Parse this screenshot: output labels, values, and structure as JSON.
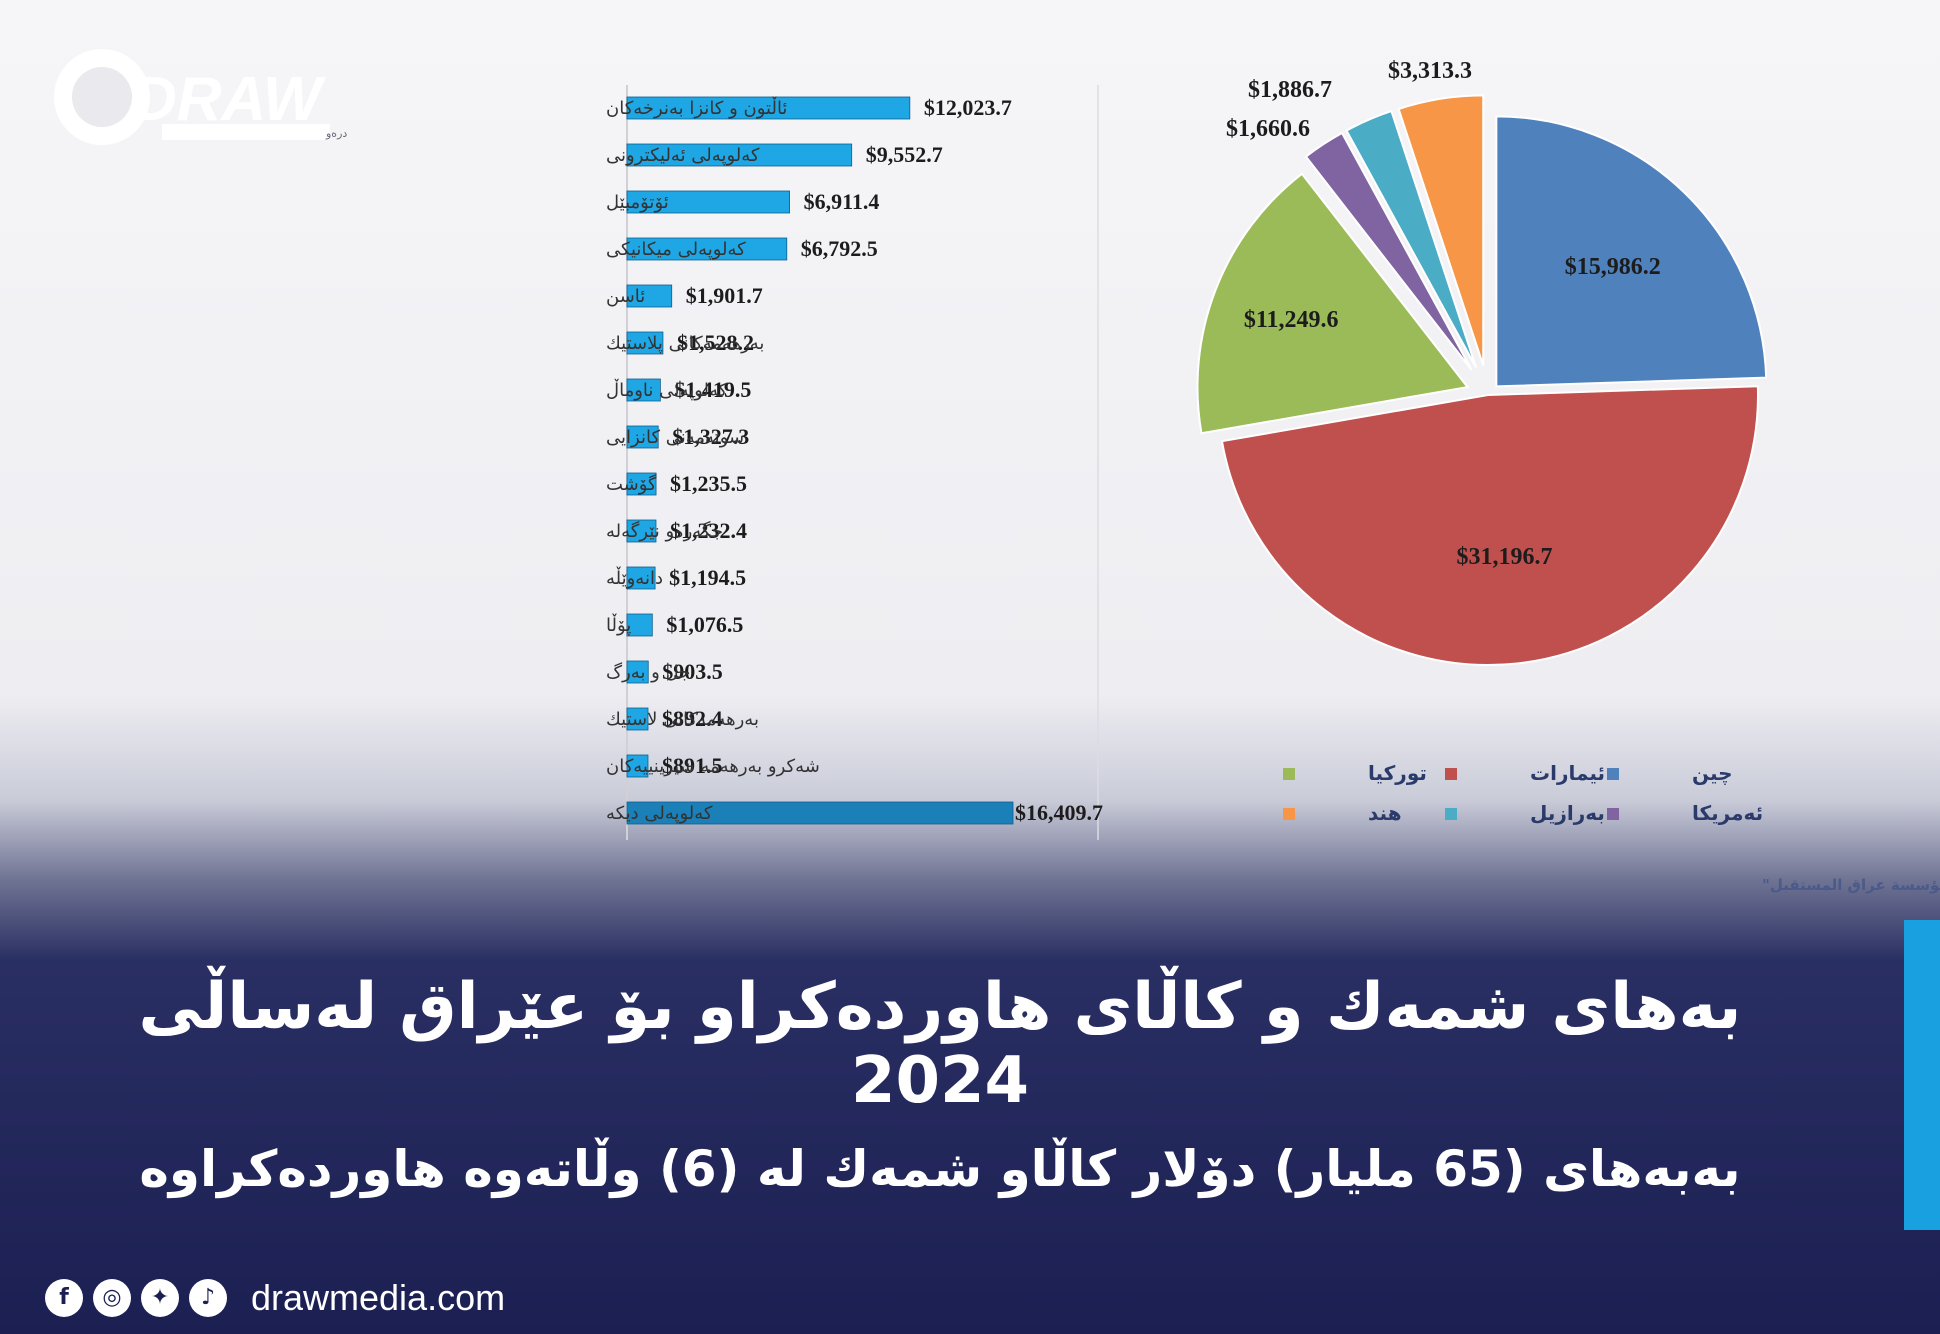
{
  "brand": {
    "logo_text": "DRAW",
    "tagline": "دامەزراوەی میدیایی درەو",
    "website": "drawmedia.com",
    "accent_color": "#18a0e0"
  },
  "headline": "بەهای شمەك و كاڵای هاوردەكراو بۆ عێراق لەساڵی 2024",
  "subheadline": "بەبەهای (65 ملیار) دۆلار كاڵاو شمەك لە (6) وڵاتەوە هاوردەكراوە",
  "social_icons": [
    "facebook-icon",
    "instagram-icon",
    "twitter-icon",
    "tiktok-icon"
  ],
  "chart_data": [
    {
      "type": "bar",
      "orientation": "horizontal",
      "categories": [
        "ئاڵتون و كانزا بەنرخەكان",
        "كەلوپەلی ئەلیكترونی",
        "ئۆتۆمبێل",
        "كەلوپەلی میكانیكی",
        "ئاسن",
        "بەرهەمەكانی پلاستیك",
        "كەلوپەلی ناوماڵ",
        "سوتەمەنی كانزایی",
        "گۆشت",
        "جگەرەو نێرگەلە",
        "دانەوێڵە",
        "پۆڵا",
        "جل و بەرگ",
        "بەرهەمەكانی لاستیك",
        "شەكرو بەرهەمە شیرینییەكان",
        "كەلوپەلی دیكە"
      ],
      "values": [
        12023.7,
        9552.7,
        6911.4,
        6792.5,
        1901.7,
        1528.2,
        1419.5,
        1327.3,
        1235.5,
        1232.4,
        1194.5,
        1076.5,
        903.5,
        892.4,
        891.5,
        16409.7
      ],
      "value_labels": [
        "$12,023.7",
        "$9,552.7",
        "$6,911.4",
        "$6,792.5",
        "$1,901.7",
        "$1,528.2",
        "$1,419.5",
        "$1,327.3",
        "$1,235.5",
        "$1,232.4",
        "$1,194.5",
        "$1,076.5",
        "$903.5",
        "$892.4",
        "$891.5",
        "$16,409.7"
      ],
      "bar_color": "#1ea7e4",
      "last_bar_color": "#1b7fb8"
    },
    {
      "type": "pie",
      "slices": [
        {
          "name": "چین",
          "value": 15986.2,
          "label": "$15,986.2",
          "color": "#4f81bd"
        },
        {
          "name": "ئیمارات",
          "value": 31196.7,
          "label": "$31,196.7",
          "color": "#c0504d"
        },
        {
          "name": "توركیا",
          "value": 11249.6,
          "label": "$11,249.6",
          "color": "#9bbb59"
        },
        {
          "name": "ئەمریكا",
          "value": 1660.6,
          "label": "$1,660.6",
          "color": "#8064a2"
        },
        {
          "name": "بەرازیل",
          "value": 1886.7,
          "label": "$1,886.7",
          "color": "#4bacc6"
        },
        {
          "name": "هند",
          "value": 3313.3,
          "label": "$3,313.3",
          "color": "#f79646"
        }
      ],
      "legend_position": "bottom",
      "source": "سەرچاوە: المهندس منار العبيدي، المدير التنفيذي لـ\"مؤسسة عراق المستقبل\""
    }
  ]
}
